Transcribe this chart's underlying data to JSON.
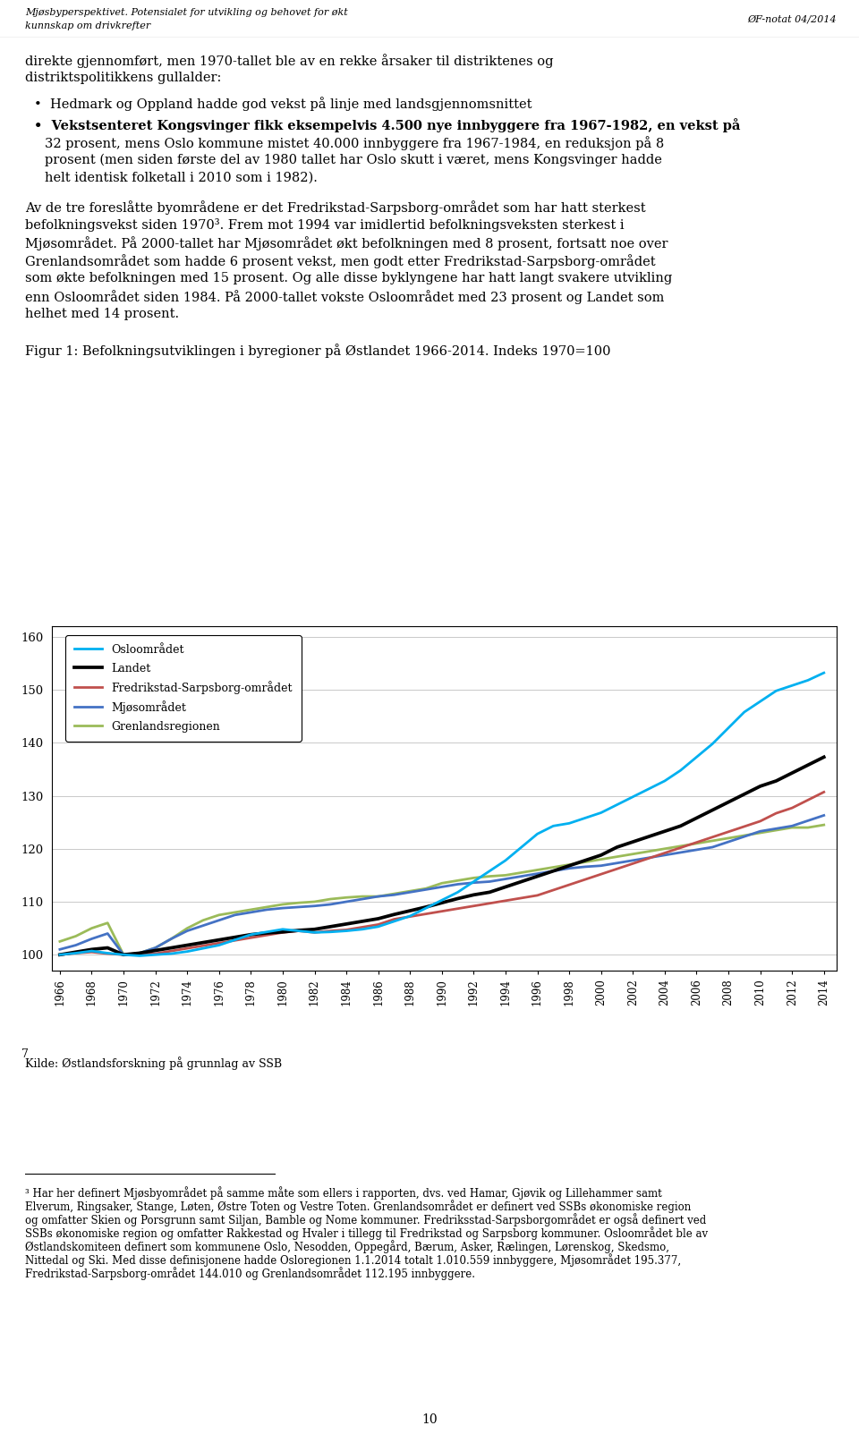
{
  "title": "Figur 1: Befolkningsutviklingen i byregioner på Østlandet 1966-2014. Indeks 1970=100",
  "source": "Kilde: Østlandsforskning på grunnlag av SSB",
  "ylim_low": 97,
  "ylim_high": 162,
  "yticks": [
    100,
    110,
    120,
    130,
    140,
    150,
    160
  ],
  "years": [
    1966,
    1967,
    1968,
    1969,
    1970,
    1971,
    1972,
    1973,
    1974,
    1975,
    1976,
    1977,
    1978,
    1979,
    1980,
    1981,
    1982,
    1983,
    1984,
    1985,
    1986,
    1987,
    1988,
    1989,
    1990,
    1991,
    1992,
    1993,
    1994,
    1995,
    1996,
    1997,
    1998,
    1999,
    2000,
    2001,
    2002,
    2003,
    2004,
    2005,
    2006,
    2007,
    2008,
    2009,
    2010,
    2011,
    2012,
    2013,
    2014
  ],
  "oslo": [
    100.0,
    100.3,
    100.7,
    100.3,
    100.0,
    99.8,
    100.0,
    100.2,
    100.6,
    101.2,
    101.8,
    102.8,
    103.8,
    104.3,
    104.8,
    104.5,
    104.2,
    104.3,
    104.5,
    104.8,
    105.3,
    106.3,
    107.3,
    108.8,
    110.3,
    111.8,
    113.8,
    115.8,
    117.8,
    120.3,
    122.8,
    124.3,
    124.8,
    125.8,
    126.8,
    128.3,
    129.8,
    131.3,
    132.8,
    134.8,
    137.3,
    139.8,
    142.8,
    145.8,
    147.8,
    149.8,
    150.8,
    151.8,
    153.2
  ],
  "landet": [
    100.0,
    100.5,
    101.0,
    101.3,
    100.0,
    100.3,
    100.8,
    101.3,
    101.8,
    102.3,
    102.8,
    103.3,
    103.8,
    104.1,
    104.3,
    104.6,
    104.8,
    105.3,
    105.8,
    106.3,
    106.8,
    107.6,
    108.3,
    109.0,
    109.8,
    110.6,
    111.3,
    111.8,
    112.8,
    113.8,
    114.8,
    115.8,
    116.8,
    117.8,
    118.8,
    120.3,
    121.3,
    122.3,
    123.3,
    124.3,
    125.8,
    127.3,
    128.8,
    130.3,
    131.8,
    132.8,
    134.3,
    135.8,
    137.3
  ],
  "fredrikstad": [
    100.0,
    100.3,
    100.5,
    100.2,
    100.0,
    100.0,
    100.2,
    100.7,
    101.2,
    101.7,
    102.2,
    102.7,
    103.2,
    103.7,
    104.2,
    104.5,
    104.2,
    104.5,
    104.7,
    105.2,
    105.7,
    106.7,
    107.2,
    107.7,
    108.2,
    108.7,
    109.2,
    109.7,
    110.2,
    110.7,
    111.2,
    112.2,
    113.2,
    114.2,
    115.2,
    116.2,
    117.2,
    118.2,
    119.2,
    120.2,
    121.2,
    122.2,
    123.2,
    124.2,
    125.2,
    126.7,
    127.7,
    129.2,
    130.7
  ],
  "mjosa": [
    101.0,
    101.8,
    103.0,
    104.0,
    100.0,
    100.3,
    101.3,
    103.0,
    104.5,
    105.5,
    106.5,
    107.5,
    108.0,
    108.5,
    108.8,
    109.0,
    109.2,
    109.5,
    110.0,
    110.5,
    111.0,
    111.3,
    111.8,
    112.3,
    112.8,
    113.3,
    113.6,
    113.8,
    114.3,
    114.8,
    115.3,
    115.8,
    116.3,
    116.6,
    116.8,
    117.3,
    117.8,
    118.3,
    118.8,
    119.3,
    119.8,
    120.3,
    121.3,
    122.3,
    123.3,
    123.8,
    124.3,
    125.3,
    126.3
  ],
  "grenland": [
    102.5,
    103.5,
    105.0,
    106.0,
    100.0,
    100.3,
    101.3,
    103.0,
    105.0,
    106.5,
    107.5,
    108.0,
    108.5,
    109.0,
    109.5,
    109.8,
    110.0,
    110.5,
    110.8,
    111.0,
    111.0,
    111.5,
    112.0,
    112.5,
    113.5,
    114.0,
    114.5,
    114.8,
    115.0,
    115.5,
    116.0,
    116.5,
    117.0,
    117.5,
    118.0,
    118.5,
    119.0,
    119.5,
    120.0,
    120.5,
    121.0,
    121.5,
    122.0,
    122.5,
    123.0,
    123.5,
    124.0,
    124.0,
    124.5
  ],
  "oslo_color": "#00B0F0",
  "landet_color": "#000000",
  "fredrikstad_color": "#C0504D",
  "mjosa_color": "#4472C4",
  "grenland_color": "#9BBB59",
  "page_bg": "#FFFFFF",
  "header_left": "Mjøsbyperspektivet. Potensialet for utvikling og behovet for økt\nkunnskap om drivkrefter",
  "header_right": "ØF-notat 04/2014",
  "footnote": "³ Har her definert Mjøsbyområdet på samme måte som ellers i rapporten, dvs. ved Hamar, Gjøvik og Lillehammer samt Elverum, Ringsaker, Stange, Løten, Østre Toten og Vestre Toten. Grenlandsområdet er definert ved SSBs økonomiske region og omfatter Skien og Porsgrunn samt Siljan, Bamble og Nome kommuner. Fredriksstad-Sarpsborgområdet er også definert ved SSBs økonomiske region og omfatter Rakkestad og Hvaler i tillegg til Fredrikstad og Sarpsborg kommuner. Osloområdet ble av Østlandskomiteen definert som kommunene Oslo, Nesodden, Oppegård, Bærum, Asker, Rælingen, Lørenskog, Skedsmo, Nittedal og Ski. Med disse definisjonene hadde Osloregionen 1.1.2014 totalt 1.010.559 innbyggere, Mjøsområdet 195.377, Fredrikstad-Sarpsborg-området 144.010 og Grenlandsområdet 112.195 innbyggere.",
  "page_number": "10"
}
